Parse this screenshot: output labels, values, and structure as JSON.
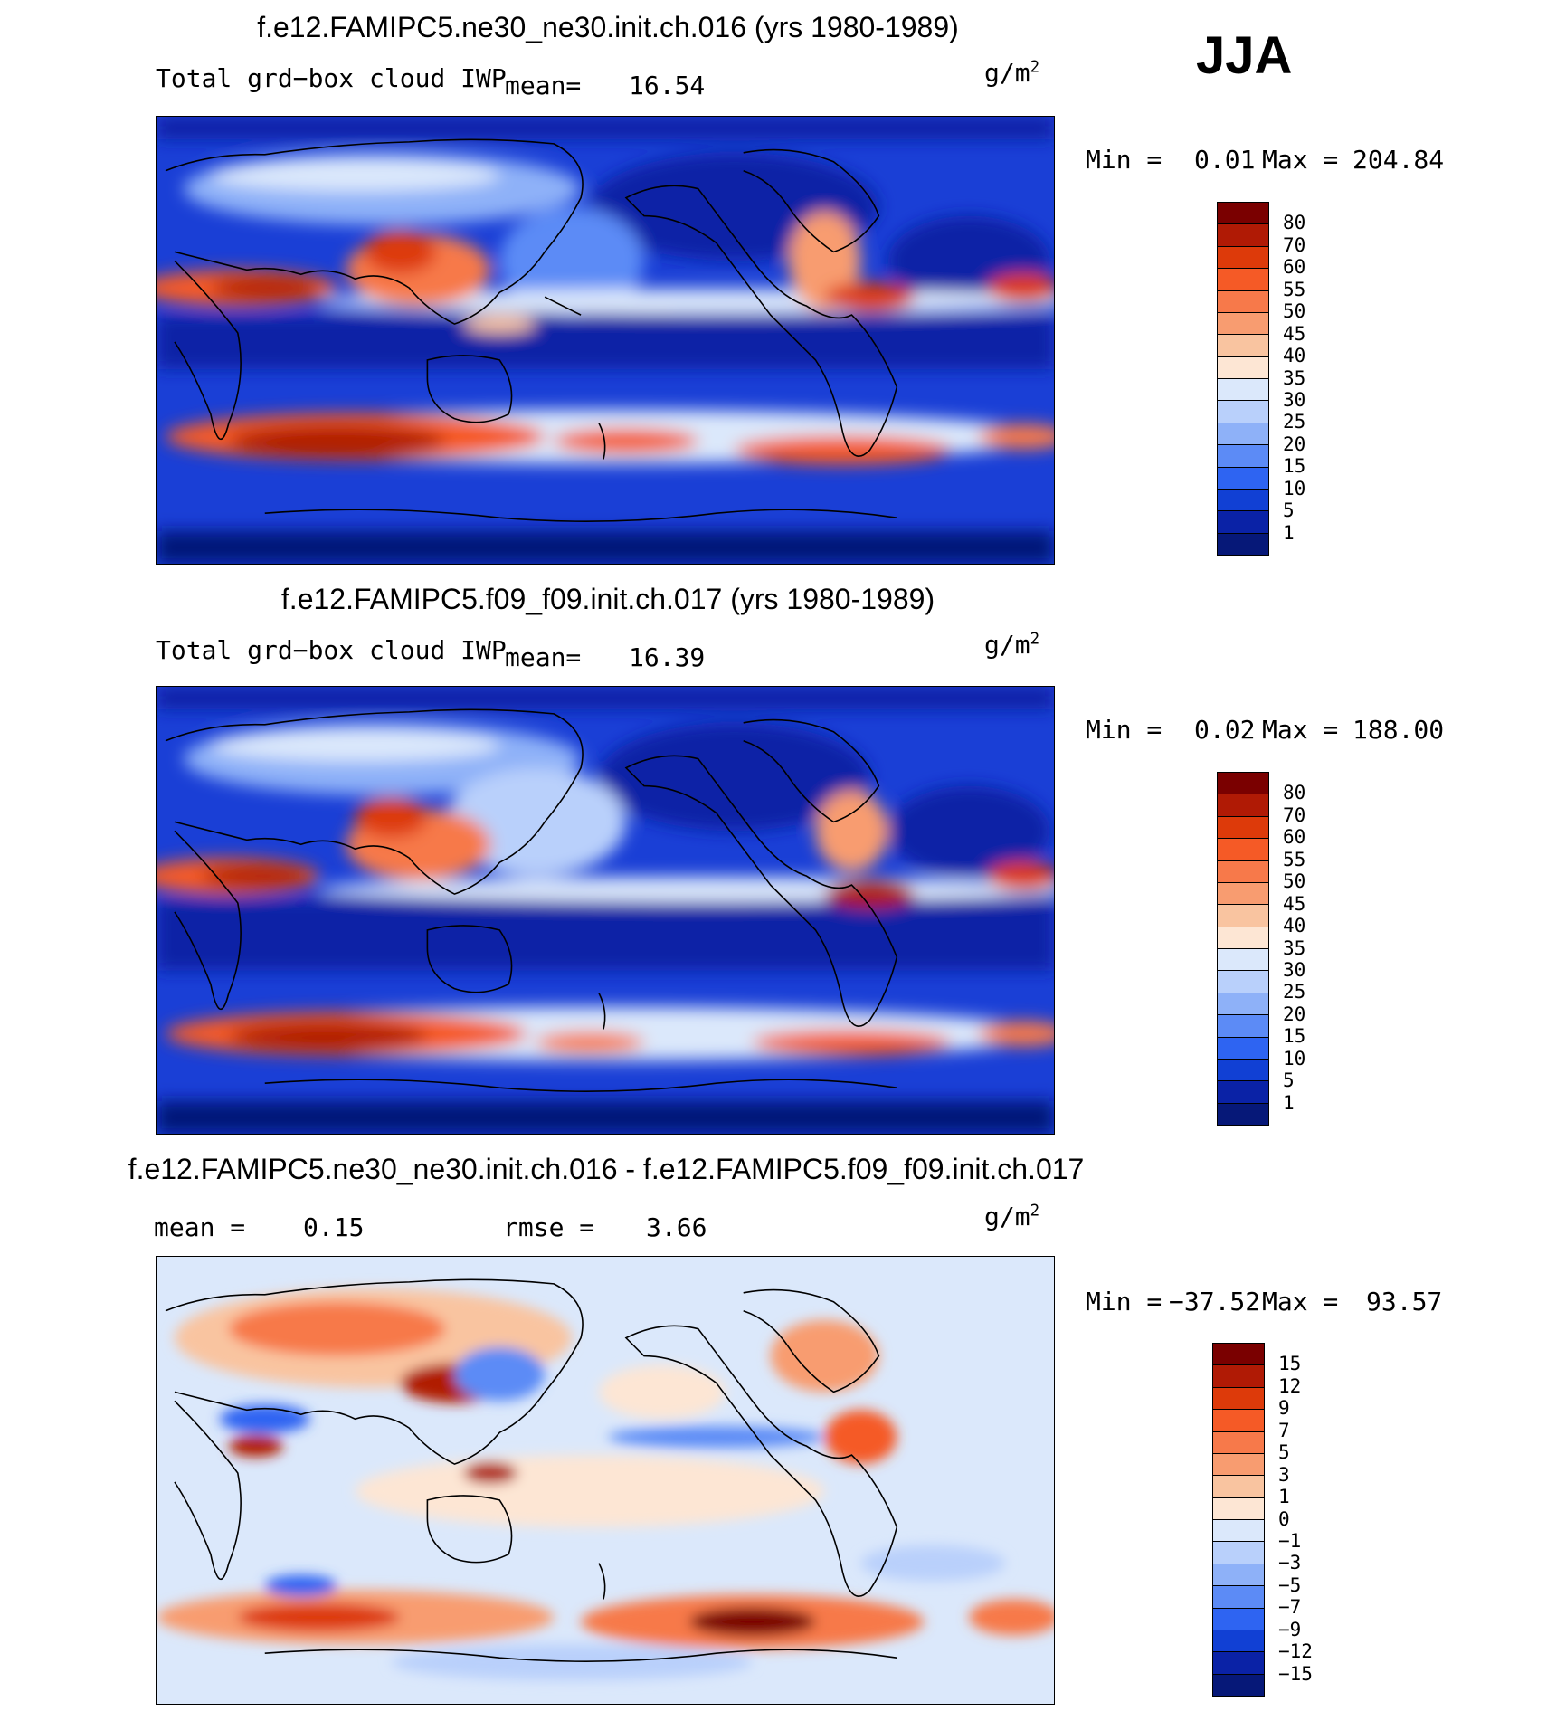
{
  "season": "JJA",
  "units_base": "g/m",
  "units_exp": "2",
  "panels": [
    {
      "title": "f.e12.FAMIPC5.ne30_ne30.init.ch.016 (yrs 1980-1989)",
      "variable": "Total grd−box cloud IWP",
      "mean_label": "mean=",
      "mean_value": "16.54",
      "min_label": "Min =",
      "min_value": "0.01",
      "max_label": "Max =",
      "max_value": "204.84",
      "colorbar_labels": [
        "80",
        "70",
        "60",
        "55",
        "50",
        "45",
        "40",
        "35",
        "30",
        "25",
        "20",
        "15",
        "10",
        "5",
        "1"
      ]
    },
    {
      "title": "f.e12.FAMIPC5.f09_f09.init.ch.017 (yrs 1980-1989)",
      "variable": "Total grd−box cloud IWP",
      "mean_label": "mean=",
      "mean_value": "16.39",
      "min_label": "Min =",
      "min_value": "0.02",
      "max_label": "Max =",
      "max_value": "188.00",
      "colorbar_labels": [
        "80",
        "70",
        "60",
        "55",
        "50",
        "45",
        "40",
        "35",
        "30",
        "25",
        "20",
        "15",
        "10",
        "5",
        "1"
      ]
    },
    {
      "title": "f.e12.FAMIPC5.ne30_ne30.init.ch.016 - f.e12.FAMIPC5.f09_f09.init.ch.017",
      "mean_label": "mean =",
      "mean_value": "0.15",
      "rmse_label": "rmse =",
      "rmse_value": "3.66",
      "min_label": "Min =",
      "min_value": "−37.52",
      "max_label": "Max =",
      "max_value": "93.57",
      "colorbar_labels": [
        "15",
        "12",
        "9",
        "7",
        "5",
        "3",
        "1",
        "0",
        "−1",
        "−3",
        "−5",
        "−7",
        "−9",
        "−12",
        "−15"
      ]
    }
  ],
  "colors": {
    "seq_palette": [
      "#7a0000",
      "#b01a05",
      "#dd3a0a",
      "#f55a26",
      "#f7794a",
      "#f89c70",
      "#f9c4a0",
      "#fde6d4",
      "#dbe8fb",
      "#b9d0fb",
      "#8eb1f8",
      "#5c8bf6",
      "#2e64f2",
      "#1140d4",
      "#0a22a6",
      "#061878"
    ],
    "diff_palette": [
      "#7a0000",
      "#b01a05",
      "#dd3a0a",
      "#f55a26",
      "#f7794a",
      "#f89c70",
      "#f9c4a0",
      "#fde6d4",
      "#dbe8fb",
      "#b9d0fb",
      "#8eb1f8",
      "#5c8bf6",
      "#2e64f2",
      "#1140d4",
      "#0a22a6",
      "#061878"
    ]
  }
}
